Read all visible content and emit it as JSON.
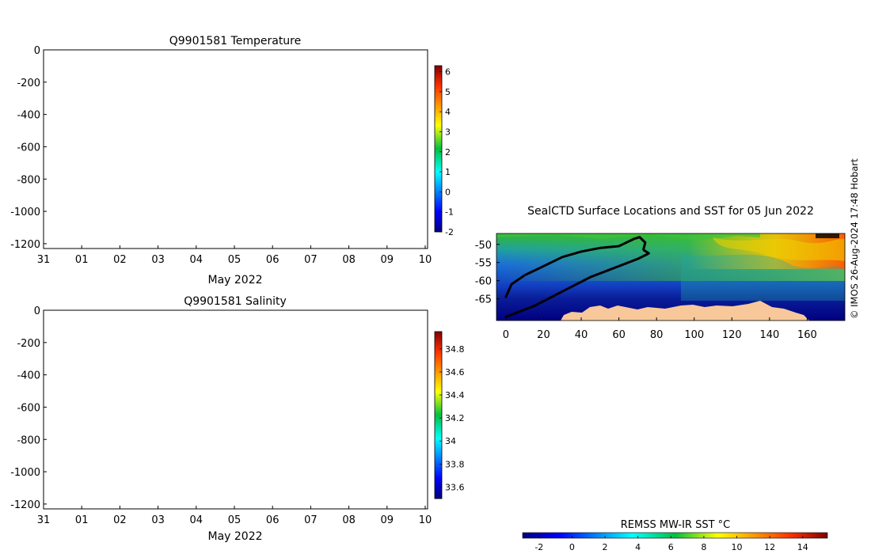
{
  "chart_data": [
    {
      "type": "heatmap",
      "title": "Q9901581  Temperature",
      "xlabel": "May 2022",
      "x_tick_labels": [
        "31",
        "01",
        "02",
        "03",
        "04",
        "05",
        "06",
        "07",
        "08",
        "09",
        "10"
      ],
      "y_tick_values": [
        0,
        -200,
        -400,
        -600,
        -800,
        -1000,
        -1200
      ],
      "y_tick_labels": [
        "0",
        "-200",
        "-400",
        "-600",
        "-800",
        "-1000",
        "-1200"
      ],
      "ylim": [
        -1230,
        0
      ],
      "colorbar": {
        "range": [
          -2,
          6.3
        ],
        "tick_values": [
          -2,
          -1,
          0,
          1,
          2,
          3,
          4,
          5,
          6
        ],
        "tick_labels": [
          "-2",
          "-1",
          "0",
          "1",
          "2",
          "3",
          "4",
          "5",
          "6"
        ],
        "colormap": "jet"
      }
    },
    {
      "type": "heatmap",
      "title": "Q9901581  Salinity",
      "xlabel": "May 2022",
      "x_tick_labels": [
        "31",
        "01",
        "02",
        "03",
        "04",
        "05",
        "06",
        "07",
        "08",
        "09",
        "10"
      ],
      "y_tick_values": [
        0,
        -200,
        -400,
        -600,
        -800,
        -1000,
        -1200
      ],
      "y_tick_labels": [
        "0",
        "-200",
        "-400",
        "-600",
        "-800",
        "-1000",
        "-1200"
      ],
      "ylim": [
        -1230,
        0
      ],
      "colorbar": {
        "range": [
          33.5,
          34.95
        ],
        "tick_values": [
          33.6,
          33.8,
          34.0,
          34.2,
          34.4,
          34.6,
          34.8
        ],
        "tick_labels": [
          "33.6",
          "33.8",
          "34",
          "34.2",
          "34.4",
          "34.6",
          "34.8"
        ],
        "colormap": "jet"
      }
    },
    {
      "type": "heatmap",
      "title": "SealCTD Surface Locations and SST for 05 Jun 2022",
      "xlim": [
        -5,
        180
      ],
      "ylim": [
        -71,
        -47
      ],
      "x_tick_values": [
        0,
        20,
        40,
        60,
        80,
        100,
        120,
        140,
        160
      ],
      "x_tick_labels": [
        "0",
        "20",
        "40",
        "60",
        "80",
        "100",
        "120",
        "140",
        "160"
      ],
      "y_tick_values": [
        -50,
        -55,
        -60,
        -65
      ],
      "y_tick_labels": [
        "-50",
        "-55",
        "-60",
        "-65"
      ],
      "land_color": "#f8c89a",
      "track_color": "#000000",
      "track": [
        [
          0,
          -64.5
        ],
        [
          3,
          -61
        ],
        [
          10,
          -58.5
        ],
        [
          20,
          -56
        ],
        [
          30,
          -53.5
        ],
        [
          40,
          -52
        ],
        [
          50,
          -51
        ],
        [
          60,
          -50.5
        ],
        [
          68,
          -48.5
        ],
        [
          71,
          -48
        ],
        [
          74,
          -49.5
        ],
        [
          73,
          -51.5
        ],
        [
          76,
          -52.5
        ],
        [
          70,
          -54
        ],
        [
          60,
          -56
        ],
        [
          45,
          -59
        ],
        [
          30,
          -63
        ],
        [
          15,
          -67
        ],
        [
          5,
          -69
        ],
        [
          0,
          -70
        ]
      ],
      "colorbar": {
        "label": "REMSS MW-IR SST °C",
        "range": [
          -3,
          15.5
        ],
        "tick_values": [
          -2,
          0,
          2,
          4,
          6,
          8,
          10,
          12,
          14
        ],
        "tick_labels": [
          "-2",
          "0",
          "2",
          "4",
          "6",
          "8",
          "10",
          "12",
          "14"
        ],
        "colormap": "jet"
      }
    }
  ],
  "footer": {
    "credit": "© IMOS 26-Aug-2024 17:48 Hobart"
  }
}
